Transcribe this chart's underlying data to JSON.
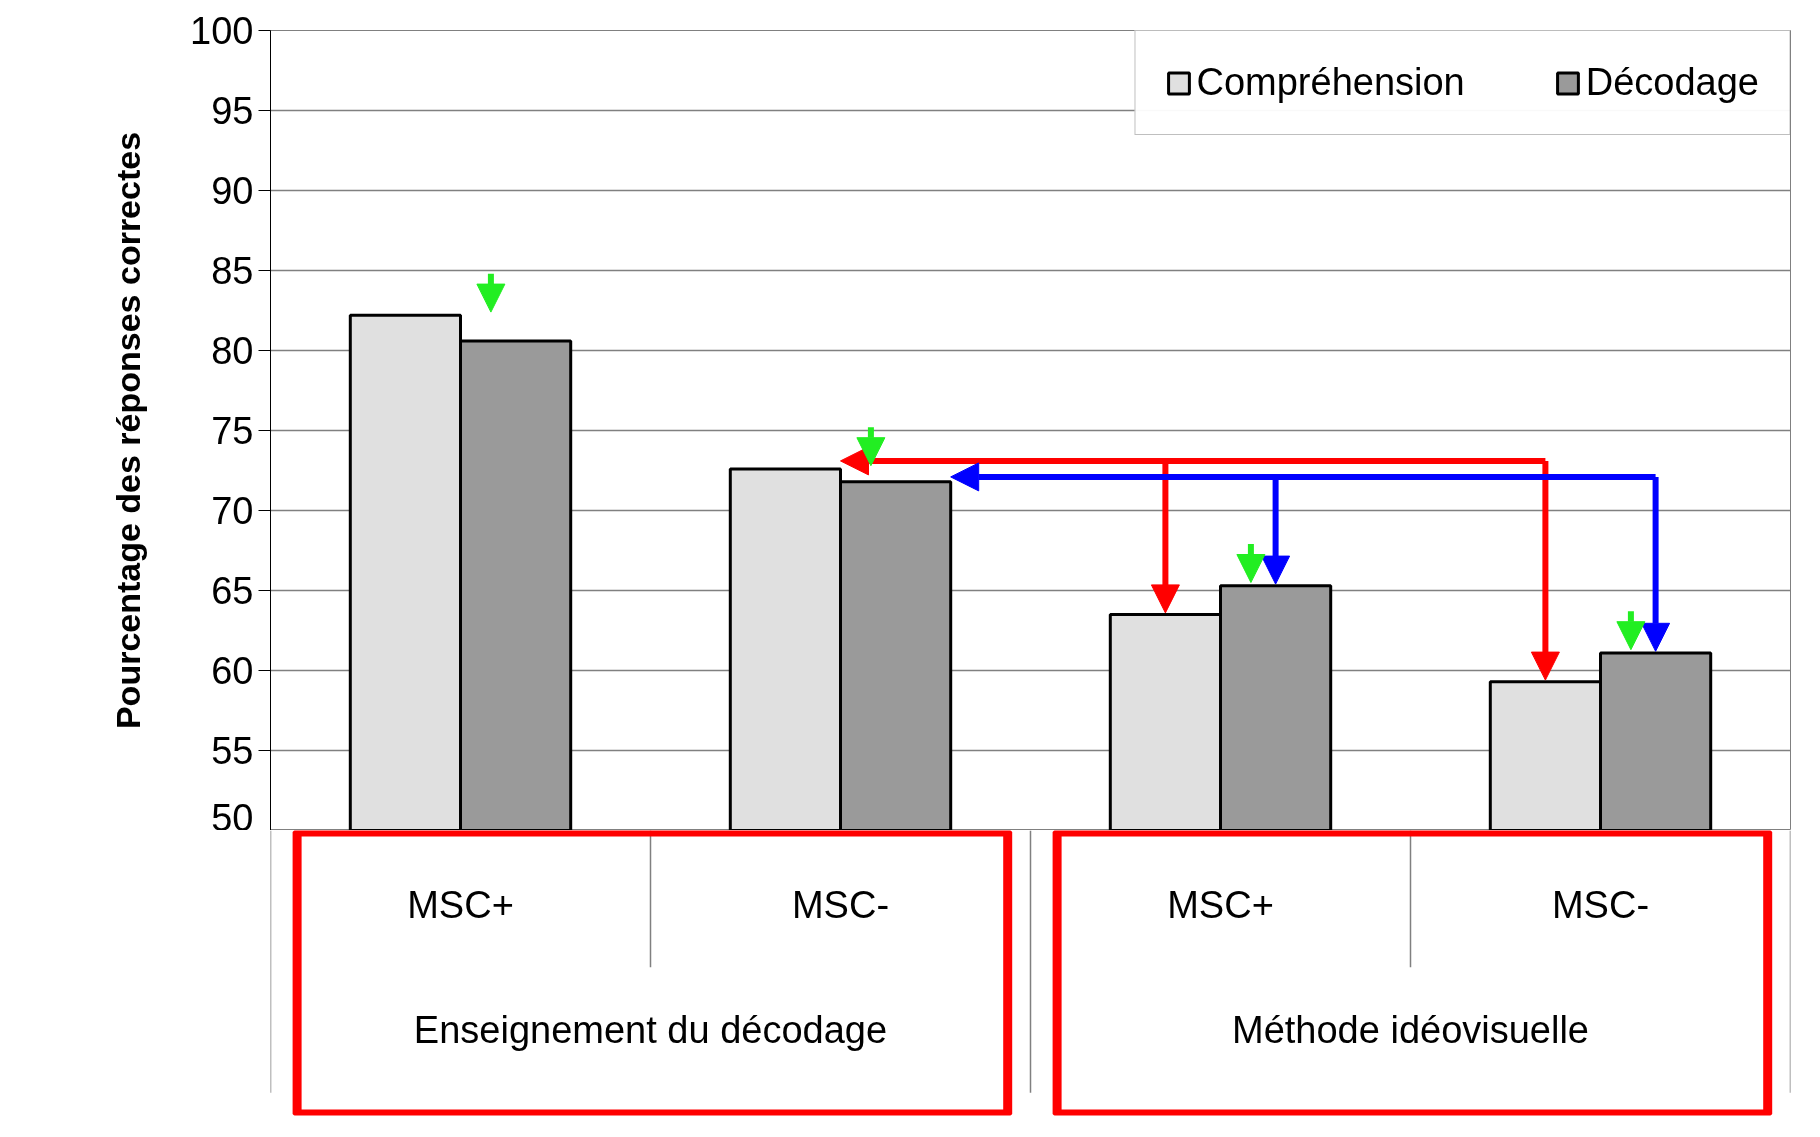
{
  "chart_data": {
    "type": "bar",
    "ylabel": "Pourcentage des réponses correctes",
    "categories": [
      "MSC+",
      "MSC-",
      "MSC+",
      "MSC-"
    ],
    "series": [
      {
        "name": "Compréhension",
        "color": "#e0e0e0",
        "values": [
          82.2,
          72.6,
          63.5,
          59.3
        ]
      },
      {
        "name": "Décodage",
        "color": "#9a9a9a",
        "values": [
          80.6,
          71.8,
          65.3,
          61.1
        ]
      }
    ],
    "annotations": [
      "Enseignement du décodage",
      "Méthode idéovisuelle"
    ],
    "ylim": [
      50,
      100
    ],
    "yticks": [
      50,
      55,
      60,
      65,
      70,
      75,
      80,
      85,
      90,
      95,
      100
    ],
    "grid": "y",
    "legend": "top right"
  }
}
